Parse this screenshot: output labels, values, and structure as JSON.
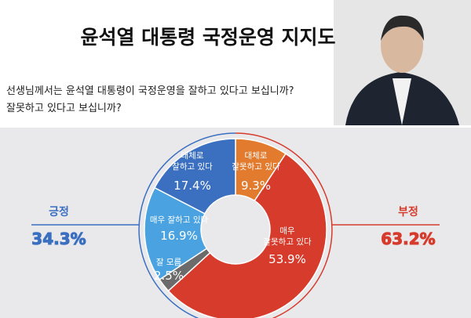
{
  "header": {
    "title": "윤석열 대통령 국정운영 지지도",
    "question": "선생님께서는 윤석열 대통령이 국정운영을 잘하고 있다고 보십니까?\n잘못하고 있다고 보십니까?"
  },
  "chart_data": {
    "type": "donut",
    "categories": [
      "대체로\n잘못하고 있다",
      "매우\n잘못하고 있다",
      "잘 모름",
      "매우 잘하고 있다",
      "대체로\n잘하고 있다"
    ],
    "values": [
      9.3,
      53.9,
      2.5,
      16.9,
      17.4
    ],
    "value_labels": [
      "9.3%",
      "53.9%",
      "2.5%",
      "16.9%",
      "17.4%"
    ],
    "colors": [
      "#e27b2e",
      "#d63b2c",
      "#6b6b6b",
      "#4aa3e0",
      "#3b6fc0"
    ],
    "groups": [
      {
        "name": "긍정",
        "value": 34.3,
        "value_label": "34.3%",
        "color": "#3b6fc0"
      },
      {
        "name": "부정",
        "value": 63.2,
        "value_label": "63.2%",
        "color": "#d63b2c"
      }
    ]
  }
}
